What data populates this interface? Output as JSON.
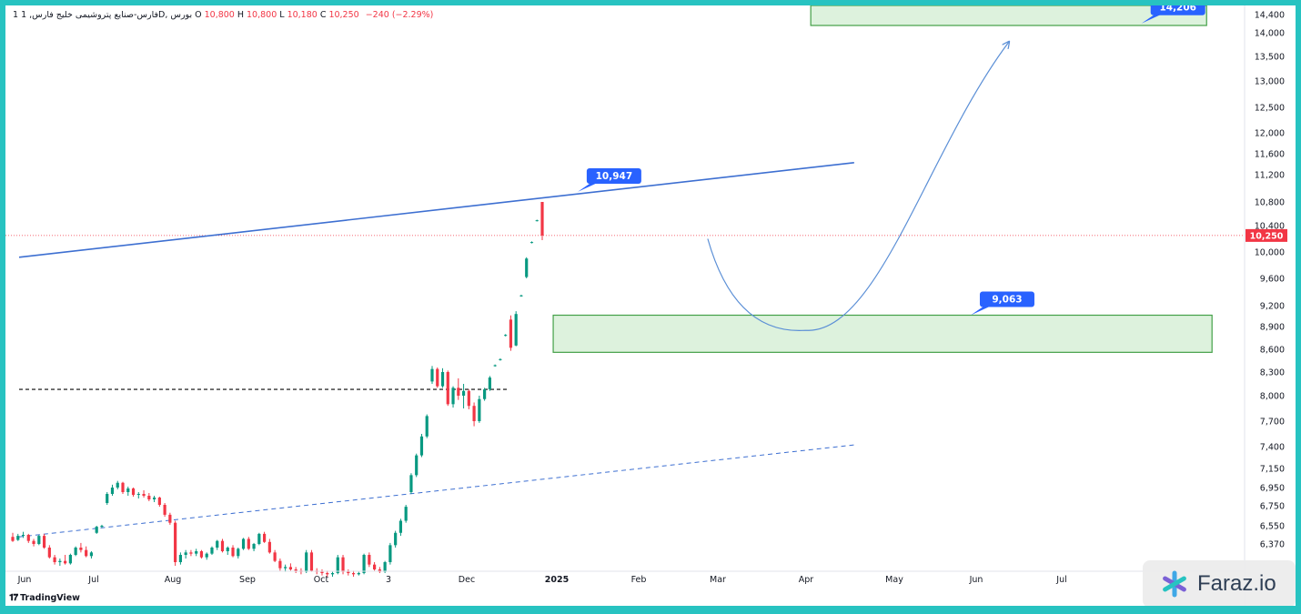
{
  "header": {
    "symbol": "1 فارس-صنایع پتروشیمی خلیج فارس, 1D, بورس",
    "open_label": "O",
    "open": "10,800",
    "high_label": "H",
    "high": "10,800",
    "low_label": "L",
    "low": "10,180",
    "close_label": "C",
    "close": "10,250",
    "change": "−240 (−2.29%)"
  },
  "branding": {
    "tradingview": "TradingView",
    "watermark": "Faraz.io"
  },
  "colors": {
    "up": "#089981",
    "down": "#f23645",
    "trendline": "#3d6fd1",
    "zone": "#43a047",
    "zone_fill": "#d7f0d7",
    "callout": "#2962ff",
    "projection": "#5b8fd6"
  },
  "chart_data": {
    "type": "candlestick",
    "x_labels": [
      "Jun",
      "Jul",
      "Aug",
      "Sep",
      "Oct",
      "3",
      "Dec",
      "2025",
      "Feb",
      "Mar",
      "Apr",
      "May",
      "Jun",
      "Jul"
    ],
    "y_ticks": [
      "14,400",
      "14,000",
      "13,500",
      "13,000",
      "12,500",
      "12,000",
      "11,600",
      "11,200",
      "10,800",
      "10,400",
      "10,000",
      "9,600",
      "9,200",
      "8,900",
      "8,600",
      "8,300",
      "8,000",
      "7,700",
      "7,400",
      "7,150",
      "6,950",
      "6,750",
      "6,550",
      "6,370"
    ],
    "last_price": "10,250",
    "last_price_value": 10250,
    "callouts": [
      {
        "text": "10,947",
        "value": 10947,
        "date": "2024-12-24"
      },
      {
        "text": "9,063",
        "value": 9063,
        "date": "2025-05-18"
      },
      {
        "text": "14,206",
        "value": 14206,
        "date": "2025-07-20"
      }
    ],
    "zones": [
      {
        "name": "support",
        "top": 9063,
        "bottom": 8560,
        "from": "2024-12-15",
        "to": "2025-08-15"
      },
      {
        "name": "target",
        "top": 14600,
        "bottom": 14160,
        "from": "2025-03-20",
        "to": "2025-08-13"
      }
    ],
    "trendlines": [
      {
        "style": "solid",
        "from": {
          "date": "2024-06-01",
          "value": 9920
        },
        "to": {
          "date": "2025-04-05",
          "value": 11430
        }
      },
      {
        "style": "dashed",
        "from": {
          "date": "2024-06-01",
          "value": 6440
        },
        "to": {
          "date": "2025-04-05",
          "value": 7420
        }
      }
    ],
    "horizontal_levels": [
      {
        "style": "dashed",
        "value": 8080,
        "from": "2024-06-01",
        "to": "2024-11-28"
      }
    ],
    "projection_path": [
      {
        "date": "2025-02-10",
        "value": 10200
      },
      {
        "date": "2025-03-18",
        "value": 8850
      },
      {
        "date": "2025-06-01",
        "value": 13800
      }
    ],
    "candles": [
      {
        "o": 6440,
        "h": 6480,
        "l": 6390,
        "c": 6400
      },
      {
        "o": 6410,
        "h": 6470,
        "l": 6400,
        "c": 6450
      },
      {
        "o": 6450,
        "h": 6490,
        "l": 6430,
        "c": 6460
      },
      {
        "o": 6460,
        "h": 6470,
        "l": 6380,
        "c": 6400
      },
      {
        "o": 6400,
        "h": 6420,
        "l": 6350,
        "c": 6370
      },
      {
        "o": 6370,
        "h": 6460,
        "l": 6360,
        "c": 6450
      },
      {
        "o": 6450,
        "h": 6470,
        "l": 6330,
        "c": 6340
      },
      {
        "o": 6340,
        "h": 6360,
        "l": 6250,
        "c": 6260
      },
      {
        "o": 6260,
        "h": 6280,
        "l": 6200,
        "c": 6220
      },
      {
        "o": 6220,
        "h": 6250,
        "l": 6190,
        "c": 6230
      },
      {
        "o": 6230,
        "h": 6280,
        "l": 6200,
        "c": 6210
      },
      {
        "o": 6210,
        "h": 6290,
        "l": 6200,
        "c": 6280
      },
      {
        "o": 6280,
        "h": 6350,
        "l": 6270,
        "c": 6340
      },
      {
        "o": 6340,
        "h": 6380,
        "l": 6300,
        "c": 6320
      },
      {
        "o": 6320,
        "h": 6350,
        "l": 6260,
        "c": 6270
      },
      {
        "o": 6270,
        "h": 6310,
        "l": 6250,
        "c": 6300
      },
      {
        "o": 6480,
        "h": 6550,
        "l": 6470,
        "c": 6540
      },
      {
        "o": 6540,
        "h": 6560,
        "l": 6530,
        "c": 6550
      },
      {
        "o": 6780,
        "h": 6900,
        "l": 6760,
        "c": 6880
      },
      {
        "o": 6880,
        "h": 6980,
        "l": 6860,
        "c": 6950
      },
      {
        "o": 6950,
        "h": 7020,
        "l": 6930,
        "c": 7000
      },
      {
        "o": 7000,
        "h": 7010,
        "l": 6880,
        "c": 6900
      },
      {
        "o": 6900,
        "h": 6960,
        "l": 6860,
        "c": 6940
      },
      {
        "o": 6940,
        "h": 6950,
        "l": 6850,
        "c": 6870
      },
      {
        "o": 6870,
        "h": 6900,
        "l": 6830,
        "c": 6880
      },
      {
        "o": 6880,
        "h": 6920,
        "l": 6840,
        "c": 6860
      },
      {
        "o": 6860,
        "h": 6890,
        "l": 6800,
        "c": 6820
      },
      {
        "o": 6820,
        "h": 6860,
        "l": 6790,
        "c": 6840
      },
      {
        "o": 6840,
        "h": 6850,
        "l": 6740,
        "c": 6760
      },
      {
        "o": 6760,
        "h": 6780,
        "l": 6640,
        "c": 6660
      },
      {
        "o": 6660,
        "h": 6680,
        "l": 6560,
        "c": 6580
      },
      {
        "o": 6580,
        "h": 6600,
        "l": 6190,
        "c": 6220
      },
      {
        "o": 6220,
        "h": 6300,
        "l": 6200,
        "c": 6280
      },
      {
        "o": 6280,
        "h": 6320,
        "l": 6250,
        "c": 6300
      },
      {
        "o": 6300,
        "h": 6320,
        "l": 6270,
        "c": 6290
      },
      {
        "o": 6290,
        "h": 6330,
        "l": 6270,
        "c": 6310
      },
      {
        "o": 6310,
        "h": 6320,
        "l": 6250,
        "c": 6260
      },
      {
        "o": 6260,
        "h": 6300,
        "l": 6240,
        "c": 6290
      },
      {
        "o": 6290,
        "h": 6350,
        "l": 6280,
        "c": 6340
      },
      {
        "o": 6340,
        "h": 6410,
        "l": 6320,
        "c": 6400
      },
      {
        "o": 6400,
        "h": 6420,
        "l": 6300,
        "c": 6310
      },
      {
        "o": 6310,
        "h": 6350,
        "l": 6280,
        "c": 6340
      },
      {
        "o": 6340,
        "h": 6360,
        "l": 6260,
        "c": 6270
      },
      {
        "o": 6270,
        "h": 6340,
        "l": 6250,
        "c": 6330
      },
      {
        "o": 6330,
        "h": 6430,
        "l": 6320,
        "c": 6420
      },
      {
        "o": 6420,
        "h": 6440,
        "l": 6320,
        "c": 6330
      },
      {
        "o": 6330,
        "h": 6380,
        "l": 6310,
        "c": 6370
      },
      {
        "o": 6370,
        "h": 6480,
        "l": 6360,
        "c": 6470
      },
      {
        "o": 6470,
        "h": 6490,
        "l": 6380,
        "c": 6390
      },
      {
        "o": 6390,
        "h": 6420,
        "l": 6290,
        "c": 6300
      },
      {
        "o": 6300,
        "h": 6320,
        "l": 6220,
        "c": 6230
      },
      {
        "o": 6230,
        "h": 6250,
        "l": 6150,
        "c": 6170
      },
      {
        "o": 6170,
        "h": 6200,
        "l": 6140,
        "c": 6180
      },
      {
        "o": 6180,
        "h": 6210,
        "l": 6150,
        "c": 6160
      },
      {
        "o": 6160,
        "h": 6180,
        "l": 6130,
        "c": 6150
      },
      {
        "o": 6150,
        "h": 6170,
        "l": 6120,
        "c": 6140
      },
      {
        "o": 6140,
        "h": 6320,
        "l": 6130,
        "c": 6300
      },
      {
        "o": 6300,
        "h": 6320,
        "l": 6140,
        "c": 6150
      },
      {
        "o": 6150,
        "h": 6170,
        "l": 6120,
        "c": 6140
      },
      {
        "o": 6140,
        "h": 6160,
        "l": 6110,
        "c": 6130
      },
      {
        "o": 6130,
        "h": 6150,
        "l": 6100,
        "c": 6120
      },
      {
        "o": 6120,
        "h": 6140,
        "l": 6100,
        "c": 6130
      },
      {
        "o": 6130,
        "h": 6280,
        "l": 6120,
        "c": 6260
      },
      {
        "o": 6260,
        "h": 6280,
        "l": 6120,
        "c": 6140
      },
      {
        "o": 6140,
        "h": 6160,
        "l": 6110,
        "c": 6130
      },
      {
        "o": 6130,
        "h": 6150,
        "l": 6100,
        "c": 6120
      },
      {
        "o": 6120,
        "h": 6140,
        "l": 6110,
        "c": 6130
      },
      {
        "o": 6130,
        "h": 6290,
        "l": 6120,
        "c": 6280
      },
      {
        "o": 6280,
        "h": 6300,
        "l": 6180,
        "c": 6200
      },
      {
        "o": 6200,
        "h": 6220,
        "l": 6150,
        "c": 6160
      },
      {
        "o": 6160,
        "h": 6180,
        "l": 6130,
        "c": 6140
      },
      {
        "o": 6140,
        "h": 6230,
        "l": 6130,
        "c": 6220
      },
      {
        "o": 6220,
        "h": 6380,
        "l": 6200,
        "c": 6360
      },
      {
        "o": 6360,
        "h": 6500,
        "l": 6340,
        "c": 6480
      },
      {
        "o": 6480,
        "h": 6620,
        "l": 6450,
        "c": 6600
      },
      {
        "o": 6600,
        "h": 6760,
        "l": 6580,
        "c": 6740
      },
      {
        "o": 6900,
        "h": 7100,
        "l": 6880,
        "c": 7080
      },
      {
        "o": 7080,
        "h": 7320,
        "l": 7060,
        "c": 7300
      },
      {
        "o": 7300,
        "h": 7550,
        "l": 7280,
        "c": 7520
      },
      {
        "o": 7520,
        "h": 7780,
        "l": 7500,
        "c": 7760
      },
      {
        "o": 8180,
        "h": 8380,
        "l": 8150,
        "c": 8340
      },
      {
        "o": 8340,
        "h": 8360,
        "l": 8100,
        "c": 8120
      },
      {
        "o": 8120,
        "h": 8350,
        "l": 8100,
        "c": 8300
      },
      {
        "o": 8300,
        "h": 8320,
        "l": 7880,
        "c": 7900
      },
      {
        "o": 7900,
        "h": 8120,
        "l": 7860,
        "c": 8100
      },
      {
        "o": 8100,
        "h": 8220,
        "l": 7950,
        "c": 8000
      },
      {
        "o": 8000,
        "h": 8150,
        "l": 7850,
        "c": 8060
      },
      {
        "o": 8060,
        "h": 8080,
        "l": 7840,
        "c": 7880
      },
      {
        "o": 7880,
        "h": 7920,
        "l": 7640,
        "c": 7700
      },
      {
        "o": 7700,
        "h": 8000,
        "l": 7680,
        "c": 7960
      },
      {
        "o": 7960,
        "h": 8100,
        "l": 7940,
        "c": 8080
      },
      {
        "o": 8080,
        "h": 8250,
        "l": 8060,
        "c": 8230
      },
      {
        "o": 8380,
        "h": 8400,
        "l": 8370,
        "c": 8390
      },
      {
        "o": 8460,
        "h": 8480,
        "l": 8450,
        "c": 8470
      },
      {
        "o": 8780,
        "h": 8800,
        "l": 8770,
        "c": 8790
      },
      {
        "o": 9000,
        "h": 9060,
        "l": 8580,
        "c": 8620
      },
      {
        "o": 8650,
        "h": 9120,
        "l": 8640,
        "c": 9080
      },
      {
        "o": 9340,
        "h": 9360,
        "l": 9330,
        "c": 9350
      },
      {
        "o": 9620,
        "h": 9920,
        "l": 9600,
        "c": 9900
      },
      {
        "o": 10140,
        "h": 10160,
        "l": 10130,
        "c": 10150
      },
      {
        "o": 10480,
        "h": 10500,
        "l": 10470,
        "c": 10490
      },
      {
        "o": 10800,
        "h": 10800,
        "l": 10180,
        "c": 10250
      }
    ]
  }
}
